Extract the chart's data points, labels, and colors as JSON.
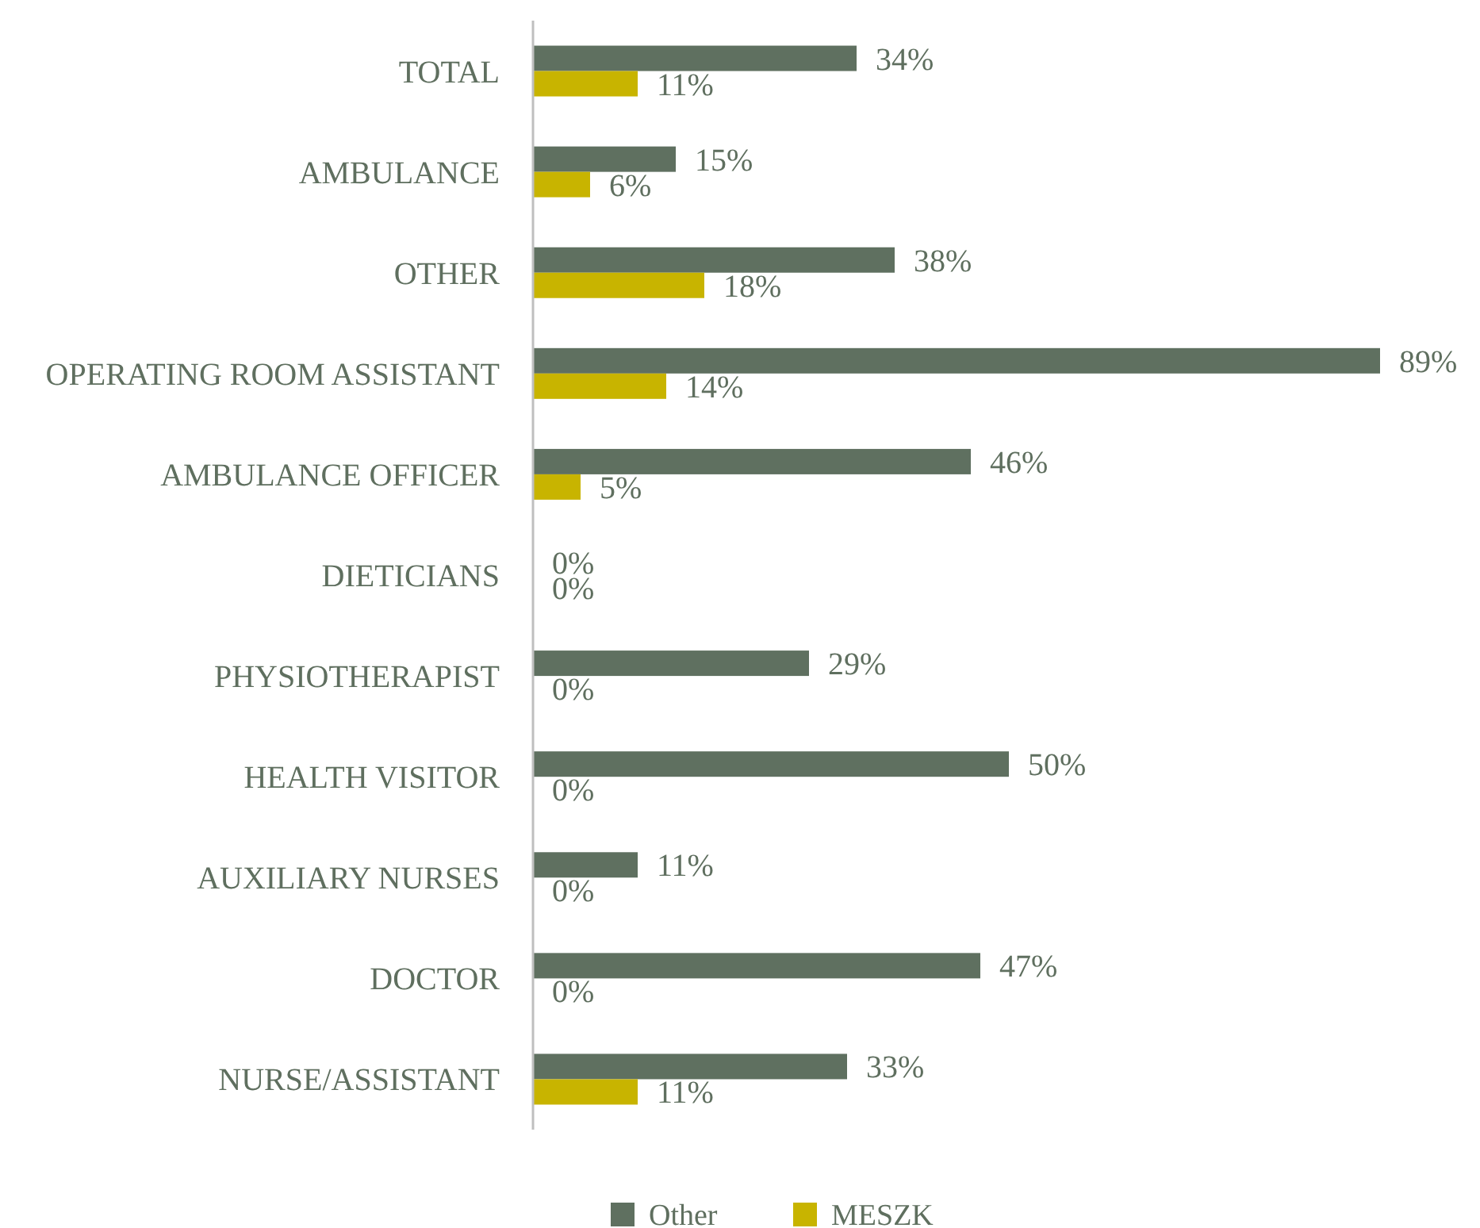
{
  "chart_data": {
    "type": "bar",
    "orientation": "horizontal",
    "legend": "bottom",
    "categories": [
      "TOTAL",
      "AMBULANCE",
      "OTHER",
      "OPERATING ROOM ASSISTANT",
      "AMBULANCE OFFICER",
      "DIETICIANS",
      "PHYSIOTHERAPIST",
      "HEALTH VISITOR",
      "AUXILIARY NURSES",
      "DOCTOR",
      "NURSE/ASSISTANT"
    ],
    "series": [
      {
        "name": "Other",
        "color": "#5f7060",
        "values": [
          34,
          15,
          38,
          89,
          46,
          0,
          29,
          50,
          11,
          47,
          33
        ],
        "value_labels": [
          "34%",
          "15%",
          "38%",
          "89%",
          "46%",
          "0%",
          "29%",
          "50%",
          "11%",
          "47%",
          "33%"
        ]
      },
      {
        "name": "MESZK",
        "color": "#c8b400",
        "values": [
          11,
          6,
          18,
          14,
          5,
          0,
          0,
          0,
          0,
          0,
          11
        ],
        "value_labels": [
          "11%",
          "6%",
          "18%",
          "14%",
          "5%",
          "0%",
          "0%",
          "0%",
          "0%",
          "0%",
          "11%"
        ]
      }
    ]
  }
}
